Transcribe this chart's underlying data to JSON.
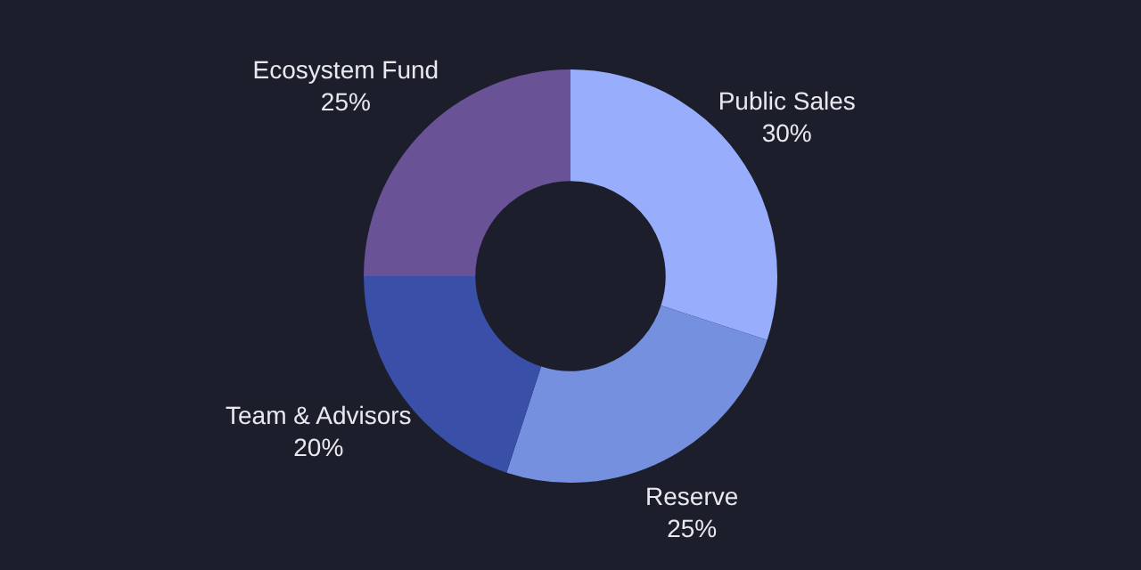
{
  "chart_data": {
    "type": "donut",
    "categories": [
      "Public Sales",
      "Reserve",
      "Team & Advisors",
      "Ecosystem Fund"
    ],
    "values": [
      30,
      25,
      20,
      25
    ],
    "colors": [
      "#98aefc",
      "#7690e0",
      "#3a4fa8",
      "#6a5296"
    ],
    "value_labels": [
      "30%",
      "25%",
      "20%",
      "25%"
    ],
    "legend": false
  }
}
